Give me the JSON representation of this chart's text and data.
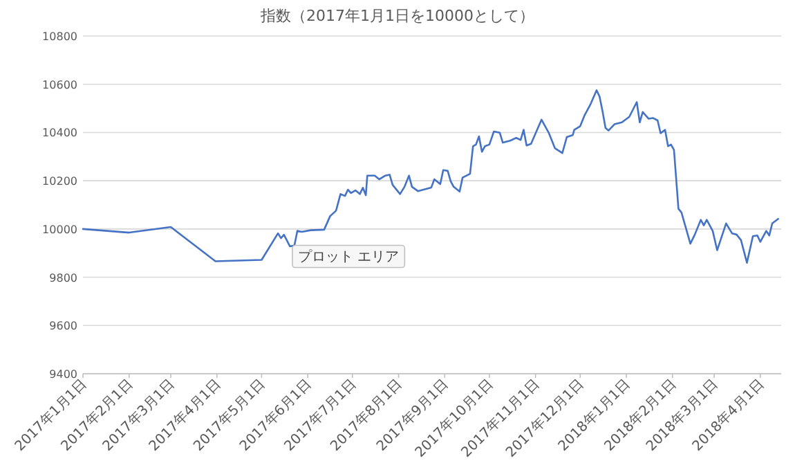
{
  "chart_data": {
    "type": "line",
    "title": "指数（2017年1月1日を10000として）",
    "x": [
      "2017-01-01",
      "2017-02-01",
      "2017-03-01",
      "2017-03-31",
      "2017-05-01",
      "2017-05-12",
      "2017-05-14",
      "2017-05-16",
      "2017-05-20",
      "2017-05-23",
      "2017-05-25",
      "2017-05-28",
      "2017-06-03",
      "2017-06-12",
      "2017-06-16",
      "2017-06-20",
      "2017-06-23",
      "2017-06-26",
      "2017-06-28",
      "2017-06-30",
      "2017-07-03",
      "2017-07-06",
      "2017-07-08",
      "2017-07-10",
      "2017-07-11",
      "2017-07-16",
      "2017-07-19",
      "2017-07-23",
      "2017-07-26",
      "2017-07-28",
      "2017-08-02",
      "2017-08-05",
      "2017-08-08",
      "2017-08-10",
      "2017-08-14",
      "2017-08-16",
      "2017-08-23",
      "2017-08-25",
      "2017-08-29",
      "2017-08-31",
      "2017-09-03",
      "2017-09-05",
      "2017-09-07",
      "2017-09-11",
      "2017-09-13",
      "2017-09-18",
      "2017-09-20",
      "2017-09-22",
      "2017-09-24",
      "2017-09-26",
      "2017-09-28",
      "2017-10-01",
      "2017-10-04",
      "2017-10-08",
      "2017-10-10",
      "2017-10-15",
      "2017-10-19",
      "2017-10-22",
      "2017-10-24",
      "2017-10-26",
      "2017-10-29",
      "2017-11-05",
      "2017-11-10",
      "2017-11-14",
      "2017-11-19",
      "2017-11-22",
      "2017-11-26",
      "2017-11-27",
      "2017-12-01",
      "2017-12-04",
      "2017-12-08",
      "2017-12-12",
      "2017-12-14",
      "2017-12-16",
      "2017-12-18",
      "2017-12-20",
      "2017-12-24",
      "2017-12-29",
      "2018-01-03",
      "2018-01-08",
      "2018-01-10",
      "2018-01-12",
      "2018-01-16",
      "2018-01-19",
      "2018-01-22",
      "2018-01-24",
      "2018-01-27",
      "2018-01-29",
      "2018-01-31",
      "2018-02-02",
      "2018-02-05",
      "2018-02-07",
      "2018-02-13",
      "2018-02-16",
      "2018-02-20",
      "2018-02-22",
      "2018-02-24",
      "2018-02-28",
      "2018-03-03",
      "2018-03-09",
      "2018-03-13",
      "2018-03-16",
      "2018-03-19",
      "2018-03-23",
      "2018-03-27",
      "2018-03-30",
      "2018-04-01",
      "2018-04-05",
      "2018-04-07",
      "2018-04-09",
      "2018-04-13"
    ],
    "series": [
      {
        "color": "#4472c4",
        "values": [
          10000,
          9985,
          10008,
          9866,
          9872,
          9982,
          9962,
          9976,
          9928,
          9931,
          9992,
          9988,
          9995,
          9997,
          10053,
          10076,
          10145,
          10137,
          10163,
          10149,
          10160,
          10145,
          10171,
          10140,
          10221,
          10221,
          10206,
          10221,
          10225,
          10183,
          10145,
          10175,
          10221,
          10175,
          10157,
          10160,
          10172,
          10206,
          10186,
          10244,
          10241,
          10198,
          10175,
          10155,
          10213,
          10229,
          10343,
          10350,
          10384,
          10320,
          10343,
          10350,
          10404,
          10399,
          10358,
          10366,
          10378,
          10369,
          10411,
          10346,
          10353,
          10453,
          10397,
          10335,
          10315,
          10381,
          10389,
          10411,
          10426,
          10472,
          10518,
          10575,
          10549,
          10488,
          10419,
          10408,
          10434,
          10442,
          10465,
          10526,
          10442,
          10485,
          10457,
          10460,
          10450,
          10397,
          10411,
          10343,
          10350,
          10328,
          10084,
          10069,
          9939,
          9977,
          10038,
          10015,
          10038,
          9992,
          9912,
          10023,
          9982,
          9977,
          9954,
          9860,
          9970,
          9973,
          9947,
          9992,
          9973,
          10023,
          10042
        ]
      }
    ],
    "xlim": [
      "2017-01-01",
      "2018-04-15"
    ],
    "xticks": [
      {
        "value": "2017-01-01",
        "label": "2017年1月1日"
      },
      {
        "value": "2017-02-01",
        "label": "2017年2月1日"
      },
      {
        "value": "2017-03-01",
        "label": "2017年3月1日"
      },
      {
        "value": "2017-04-01",
        "label": "2017年4月1日"
      },
      {
        "value": "2017-05-01",
        "label": "2017年5月1日"
      },
      {
        "value": "2017-06-01",
        "label": "2017年6月1日"
      },
      {
        "value": "2017-07-01",
        "label": "2017年7月1日"
      },
      {
        "value": "2017-08-01",
        "label": "2017年8月1日"
      },
      {
        "value": "2017-09-01",
        "label": "2017年9月1日"
      },
      {
        "value": "2017-10-01",
        "label": "2017年10月1日"
      },
      {
        "value": "2017-11-01",
        "label": "2017年11月1日"
      },
      {
        "value": "2017-12-01",
        "label": "2017年12月1日"
      },
      {
        "value": "2018-01-01",
        "label": "2018年1月1日"
      },
      {
        "value": "2018-02-01",
        "label": "2018年2月1日"
      },
      {
        "value": "2018-03-01",
        "label": "2018年3月1日"
      },
      {
        "value": "2018-04-01",
        "label": "2018年4月1日"
      }
    ],
    "ylim": [
      9400,
      10800
    ],
    "yticks": [
      9400,
      9600,
      9800,
      10000,
      10200,
      10400,
      10600,
      10800
    ],
    "grid": "y",
    "annotations": [
      "プロット エリア"
    ]
  }
}
